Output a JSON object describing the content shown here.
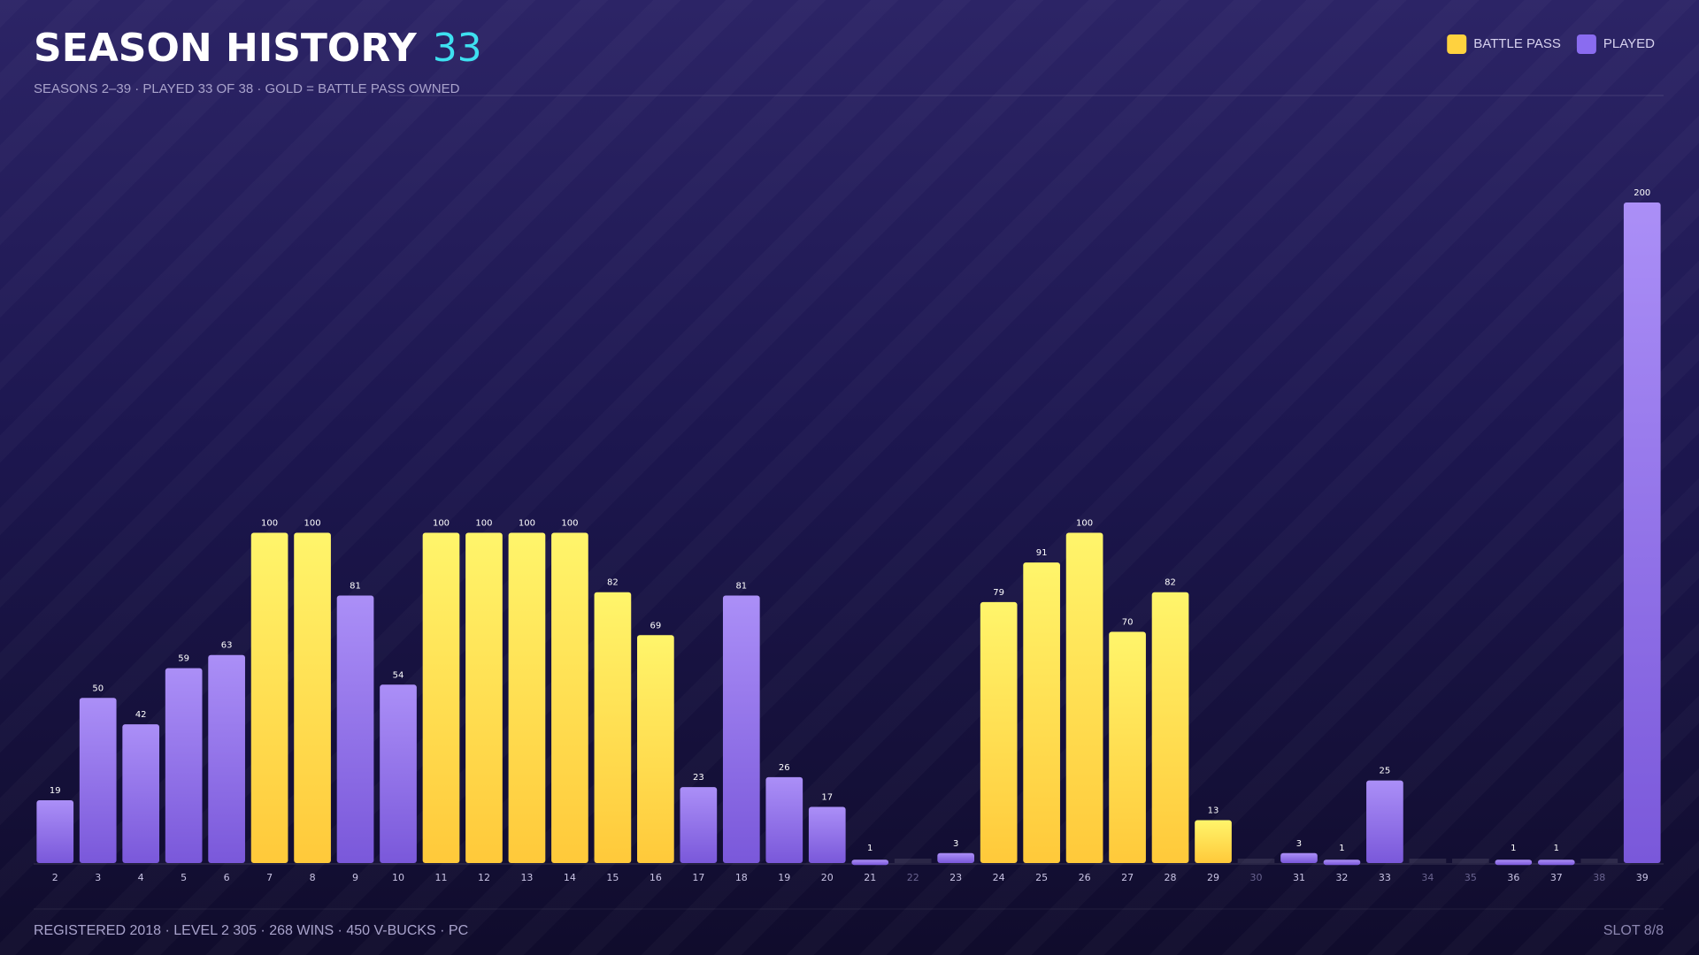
{
  "chart_data": {
    "type": "bar",
    "title": "SEASON HISTORY",
    "title_count": "33",
    "subtitle": "SEASONS 2–39  ·  PLAYED 33 OF 38  ·  GOLD = BATTLE PASS OWNED",
    "footer_left": "REGISTERED 2018  ·  LEVEL 2 305  ·  268 WINS  ·  450 V-BUCKS  ·  PC",
    "footer_right": "SLOT 8/8",
    "categories": [
      "2",
      "3",
      "4",
      "5",
      "6",
      "7",
      "8",
      "9",
      "10",
      "11",
      "12",
      "13",
      "14",
      "15",
      "16",
      "17",
      "18",
      "19",
      "20",
      "21",
      "22",
      "23",
      "24",
      "25",
      "26",
      "27",
      "28",
      "29",
      "30",
      "31",
      "32",
      "33",
      "34",
      "35",
      "36",
      "37",
      "38",
      "39"
    ],
    "series": [
      {
        "name": "BATTLE PASS",
        "color": "#ffd23f",
        "values": [
          null,
          null,
          null,
          null,
          null,
          100,
          100,
          null,
          null,
          100,
          100,
          100,
          100,
          82,
          69,
          null,
          null,
          null,
          null,
          null,
          null,
          null,
          79,
          91,
          100,
          70,
          82,
          13,
          null,
          null,
          null,
          null,
          null,
          null,
          null,
          null,
          null,
          null
        ]
      },
      {
        "name": "PLAYED",
        "color": "#8a6cf0",
        "values": [
          19,
          50,
          42,
          59,
          63,
          null,
          null,
          81,
          54,
          null,
          null,
          null,
          null,
          null,
          null,
          23,
          81,
          26,
          17,
          1,
          null,
          3,
          null,
          null,
          null,
          null,
          null,
          null,
          null,
          3,
          1,
          25,
          null,
          null,
          1,
          1,
          null,
          200
        ]
      }
    ],
    "ylim": [
      0,
      200
    ],
    "legend": "top-right"
  }
}
